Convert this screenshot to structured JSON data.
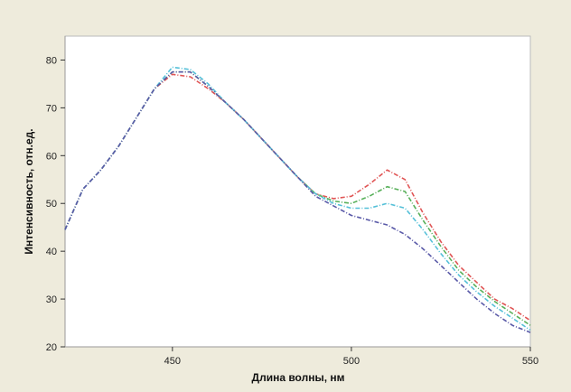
{
  "chart_data": {
    "type": "line",
    "title": "",
    "xlabel": "Длина волны, нм",
    "ylabel": "Интенсивность, отн.ед.",
    "xlim": [
      420,
      550
    ],
    "ylim": [
      20,
      85
    ],
    "xticks": [
      450,
      500,
      550
    ],
    "yticks": [
      20,
      30,
      40,
      50,
      60,
      70,
      80
    ],
    "grid": false,
    "legend": "none",
    "x": [
      420,
      425,
      430,
      435,
      440,
      445,
      450,
      455,
      460,
      465,
      470,
      475,
      480,
      485,
      490,
      495,
      500,
      505,
      510,
      515,
      520,
      525,
      530,
      535,
      540,
      545,
      550
    ],
    "series": [
      {
        "color": "#e05555",
        "values": [
          44.5,
          53,
          57,
          62,
          68,
          74,
          77,
          76.5,
          74,
          71,
          67.5,
          63.5,
          59.5,
          55.5,
          52,
          51,
          51.5,
          54,
          57,
          55,
          48,
          42,
          37,
          33.5,
          30,
          28,
          25.5
        ]
      },
      {
        "color": "#58b05a",
        "values": [
          44.5,
          53,
          57,
          62,
          68,
          74,
          77.5,
          77.5,
          74.5,
          71,
          67.5,
          63.5,
          59.5,
          55.5,
          52,
          50.5,
          50,
          51.5,
          53.5,
          52.5,
          46.5,
          41,
          36,
          32.5,
          29.5,
          27,
          24.5
        ]
      },
      {
        "color": "#55c0d8",
        "values": [
          44.5,
          53,
          57,
          62,
          68,
          74,
          78.5,
          78,
          75,
          71,
          67.5,
          63.5,
          59.5,
          55.5,
          52,
          50,
          49,
          49,
          50,
          49,
          44.5,
          39.5,
          35,
          31.5,
          28.5,
          26,
          23.5
        ]
      },
      {
        "color": "#5a5aa8",
        "values": [
          44.5,
          53,
          57,
          62,
          68,
          74,
          77.5,
          77.5,
          74.5,
          71,
          67.5,
          63.5,
          59.5,
          55.5,
          51.5,
          49.5,
          47.5,
          46.5,
          45.5,
          43.5,
          40.5,
          37,
          33.5,
          30,
          27,
          24.5,
          23
        ]
      }
    ]
  }
}
